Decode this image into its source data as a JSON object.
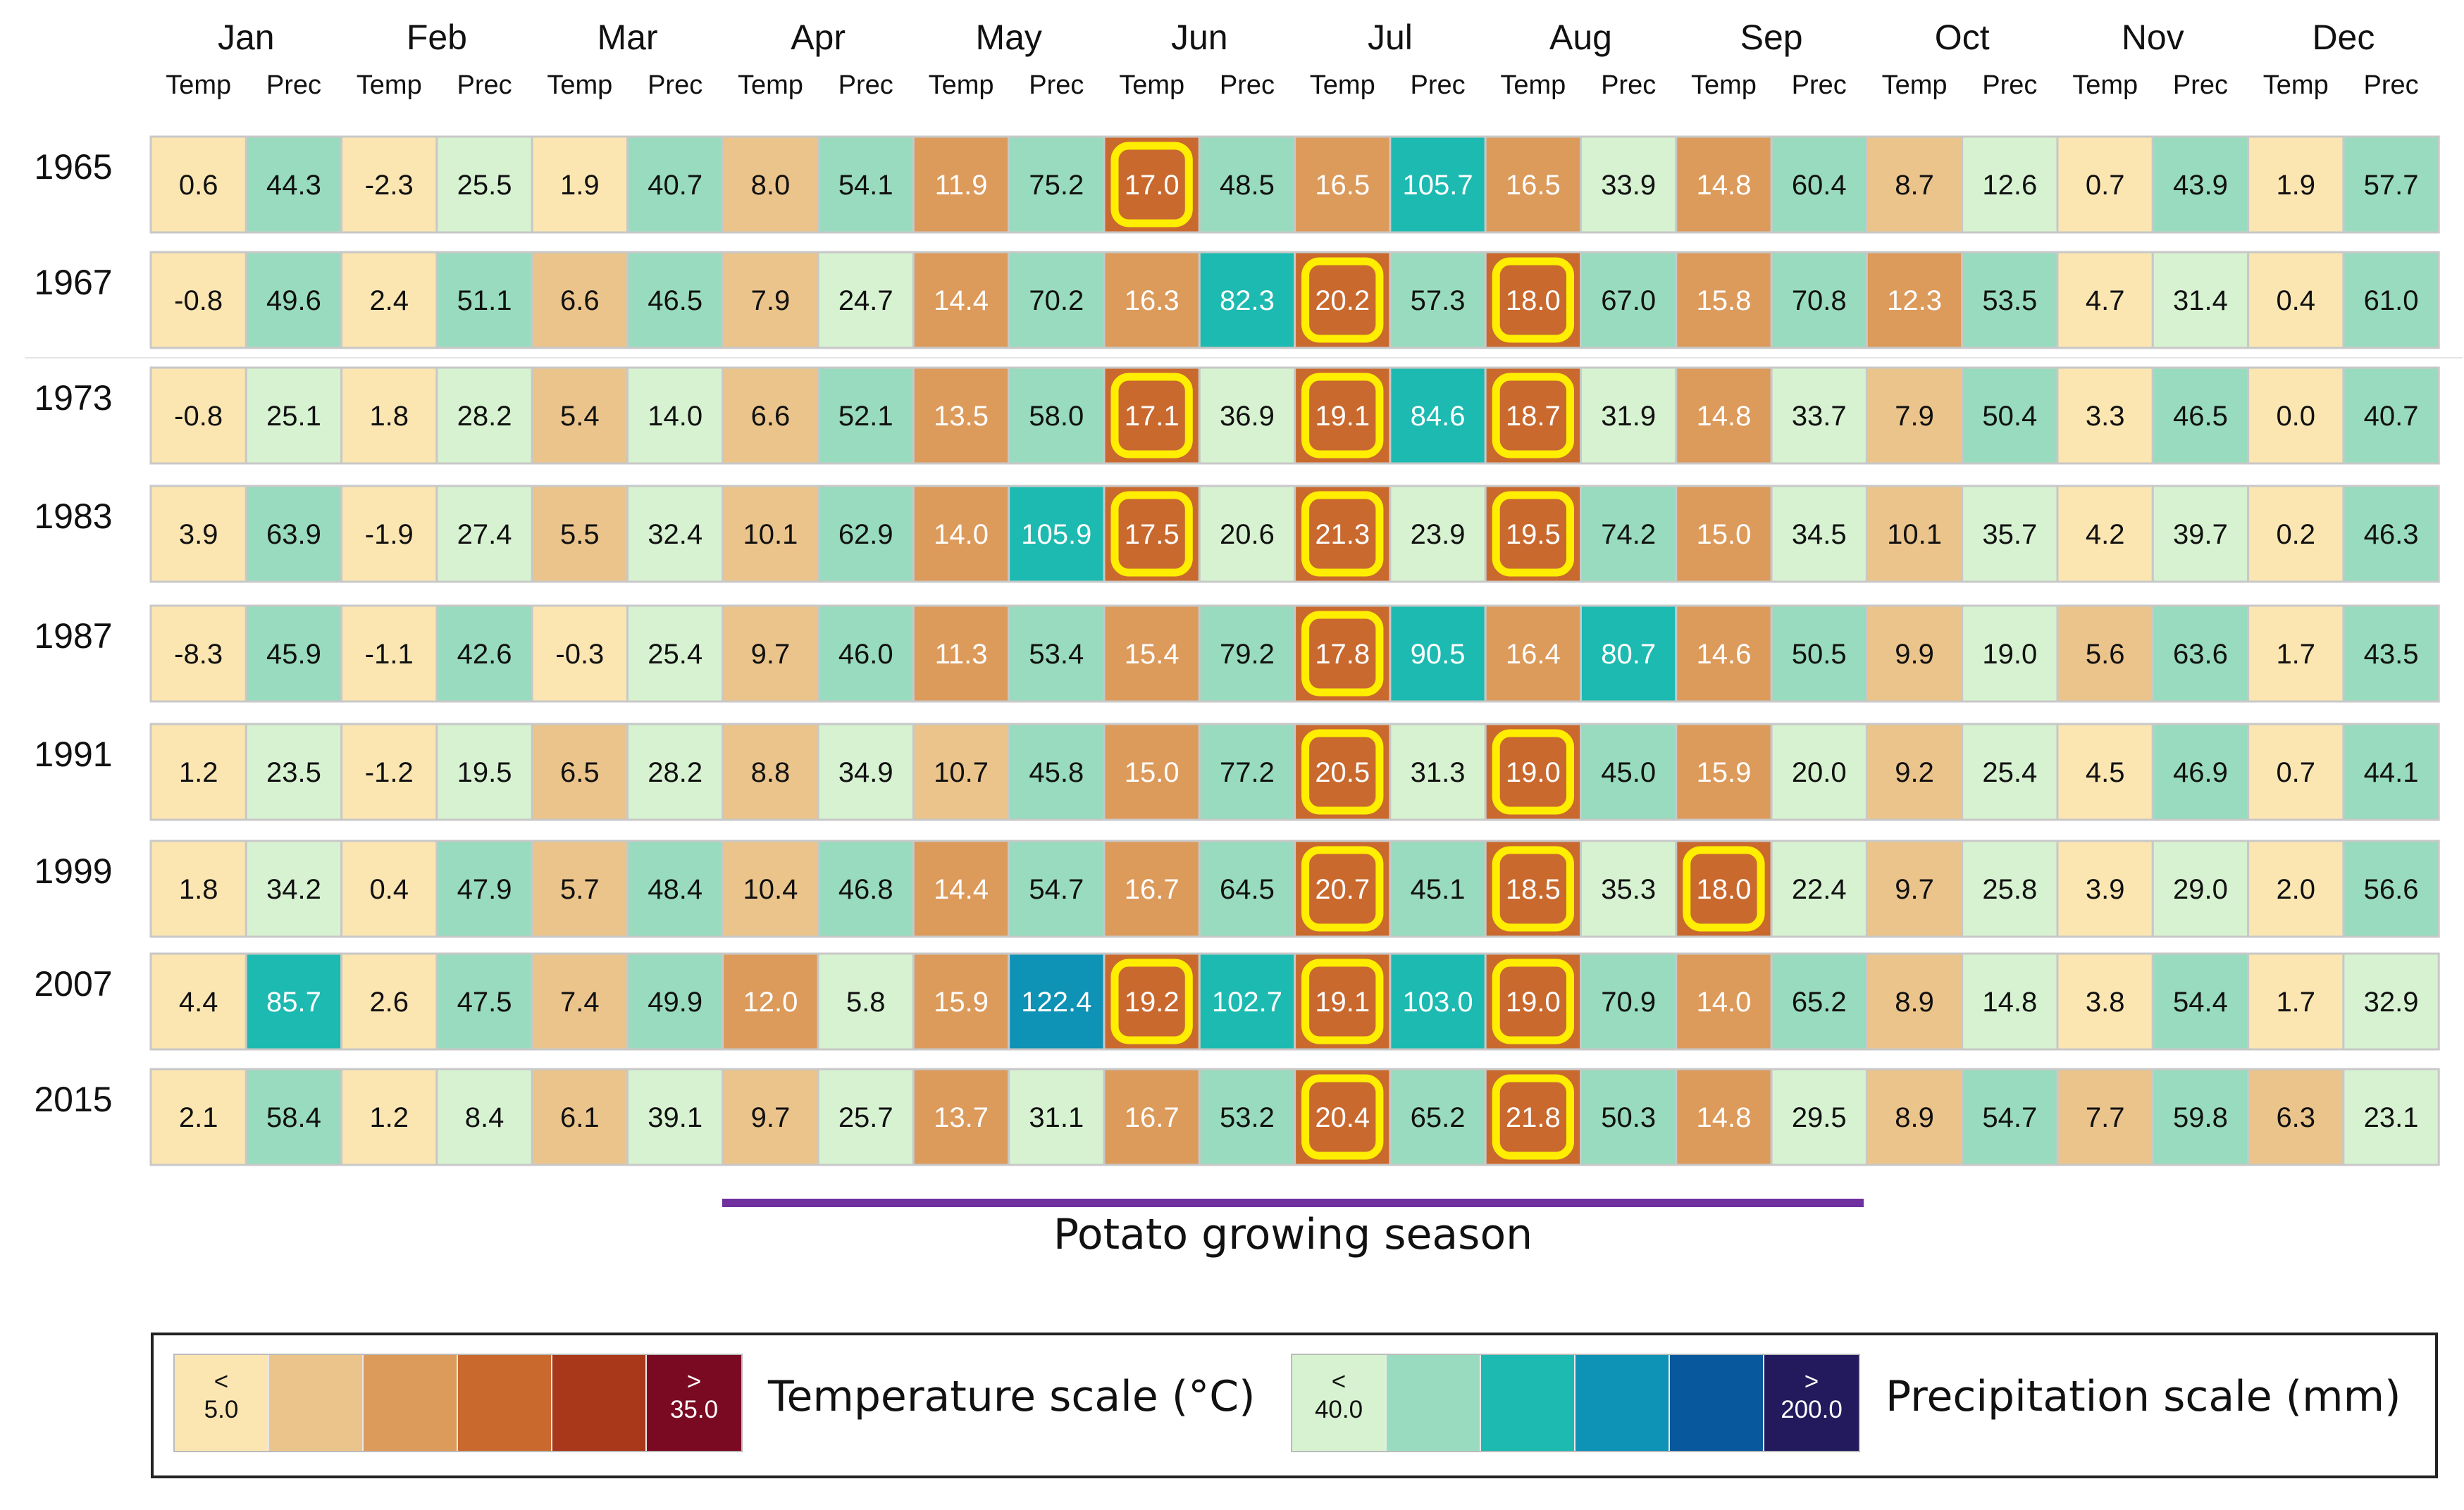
{
  "chart_data": {
    "type": "heatmap",
    "title": "",
    "months": [
      "Jan",
      "Feb",
      "Mar",
      "Apr",
      "May",
      "Jun",
      "Jul",
      "Aug",
      "Sep",
      "Oct",
      "Nov",
      "Dec"
    ],
    "column_labels": {
      "temp": "Temp",
      "prec": "Prec"
    },
    "rows": [
      {
        "year": "1965",
        "temp": [
          0.6,
          -2.3,
          1.9,
          8.0,
          11.9,
          17.0,
          16.5,
          16.5,
          14.8,
          8.7,
          0.7,
          1.9
        ],
        "prec": [
          44.3,
          25.5,
          40.7,
          54.1,
          75.2,
          48.5,
          105.7,
          33.9,
          60.4,
          12.6,
          43.9,
          57.7
        ],
        "highlight_months": [
          "Jun"
        ]
      },
      {
        "year": "1967",
        "temp": [
          -0.8,
          2.4,
          6.6,
          7.9,
          14.4,
          16.3,
          20.2,
          18.0,
          15.8,
          12.3,
          4.7,
          0.4
        ],
        "prec": [
          49.6,
          51.1,
          46.5,
          24.7,
          70.2,
          82.3,
          57.3,
          67.0,
          70.8,
          53.5,
          31.4,
          61.0
        ],
        "highlight_months": [
          "Jul",
          "Aug"
        ]
      },
      {
        "year": "1973",
        "temp": [
          -0.8,
          1.8,
          5.4,
          6.6,
          13.5,
          17.1,
          19.1,
          18.7,
          14.8,
          7.9,
          3.3,
          0.0
        ],
        "prec": [
          25.1,
          28.2,
          14.0,
          52.1,
          58.0,
          36.9,
          84.6,
          31.9,
          33.7,
          50.4,
          46.5,
          40.7
        ],
        "highlight_months": [
          "Jun",
          "Jul",
          "Aug"
        ]
      },
      {
        "year": "1983",
        "temp": [
          3.9,
          -1.9,
          5.5,
          10.1,
          14.0,
          17.5,
          21.3,
          19.5,
          15.0,
          10.1,
          4.2,
          0.2
        ],
        "prec": [
          63.9,
          27.4,
          32.4,
          62.9,
          105.9,
          20.6,
          23.9,
          74.2,
          34.5,
          35.7,
          39.7,
          46.3
        ],
        "highlight_months": [
          "Jun",
          "Jul",
          "Aug"
        ]
      },
      {
        "year": "1987",
        "temp": [
          -8.3,
          -1.1,
          -0.3,
          9.7,
          11.3,
          15.4,
          17.8,
          16.4,
          14.6,
          9.9,
          5.6,
          1.7
        ],
        "prec": [
          45.9,
          42.6,
          25.4,
          46.0,
          53.4,
          79.2,
          90.5,
          80.7,
          50.5,
          19.0,
          63.6,
          43.5
        ],
        "highlight_months": [
          "Jul"
        ]
      },
      {
        "year": "1991",
        "temp": [
          1.2,
          -1.2,
          6.5,
          8.8,
          10.7,
          15.0,
          20.5,
          19.0,
          15.9,
          9.2,
          4.5,
          0.7
        ],
        "prec": [
          23.5,
          19.5,
          28.2,
          34.9,
          45.8,
          77.2,
          31.3,
          45.0,
          20.0,
          25.4,
          46.9,
          44.1
        ],
        "highlight_months": [
          "Jul",
          "Aug"
        ]
      },
      {
        "year": "1999",
        "temp": [
          1.8,
          0.4,
          5.7,
          10.4,
          14.4,
          16.7,
          20.7,
          18.5,
          18.0,
          9.7,
          3.9,
          2.0
        ],
        "prec": [
          34.2,
          47.9,
          48.4,
          46.8,
          54.7,
          64.5,
          45.1,
          35.3,
          22.4,
          25.8,
          29.0,
          56.6
        ],
        "highlight_months": [
          "Jul",
          "Aug",
          "Sep"
        ]
      },
      {
        "year": "2007",
        "temp": [
          4.4,
          2.6,
          7.4,
          12.0,
          15.9,
          19.2,
          19.1,
          19.0,
          14.0,
          8.9,
          3.8,
          1.7
        ],
        "prec": [
          85.7,
          47.5,
          49.9,
          5.8,
          122.4,
          102.7,
          103.0,
          70.9,
          65.2,
          14.8,
          54.4,
          32.9
        ],
        "highlight_months": [
          "Jun",
          "Jul",
          "Aug"
        ]
      },
      {
        "year": "2015",
        "temp": [
          2.1,
          1.2,
          6.1,
          9.7,
          13.7,
          16.7,
          20.4,
          21.8,
          14.8,
          8.9,
          7.7,
          6.3
        ],
        "prec": [
          58.4,
          8.4,
          39.1,
          25.7,
          31.1,
          53.2,
          65.2,
          50.3,
          29.5,
          54.7,
          59.8,
          23.1
        ],
        "highlight_months": [
          "Jul",
          "Aug"
        ]
      }
    ],
    "annotation": {
      "label": "Potato growing season",
      "start_month": "Apr",
      "end_month": "Sep"
    },
    "legend": {
      "temperature": {
        "title": "Temperature scale (°C)",
        "low_label": "<\n5.0",
        "high_label": ">\n35.0",
        "range": [
          5.0,
          35.0
        ],
        "colors": [
          "#fbe6b2",
          "#ebc48b",
          "#dc9a5b",
          "#c9692e",
          "#a83819",
          "#7a0a22"
        ]
      },
      "precipitation": {
        "title": "Precipitation scale (mm)",
        "low_label": "<\n40.0",
        "high_label": ">\n200.0",
        "range": [
          40.0,
          200.0
        ],
        "colors": [
          "#d7f2d1",
          "#98dbbe",
          "#1cbab1",
          "#0e92b6",
          "#07589d",
          "#221a5c"
        ]
      }
    },
    "highlight_color": "#ffee00"
  }
}
